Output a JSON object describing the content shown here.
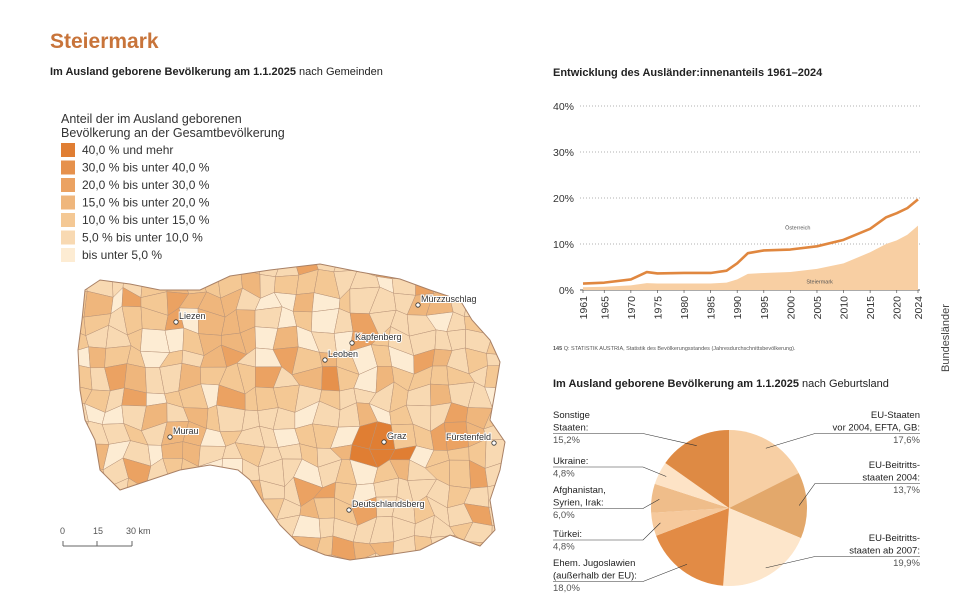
{
  "header": {
    "title": "Steiermark",
    "subtitle_bold": "Im Ausland geborene Bevölkerung am 1.1.2025",
    "subtitle_rest": "nach Gemeinden"
  },
  "map": {
    "legend_title": [
      "Anteil der im Ausland geborenen",
      "Bevölkerung an der Gesamtbevölkerung"
    ],
    "legend": [
      {
        "label": "40,0 % und mehr",
        "color": "#e07e33"
      },
      {
        "label": "30,0 % bis unter 40,0 %",
        "color": "#e6914c"
      },
      {
        "label": "20,0 % bis unter 30,0 %",
        "color": "#eba262"
      },
      {
        "label": "15,0 % bis unter 20,0 %",
        "color": "#efb67c"
      },
      {
        "label": "10,0 % bis unter 15,0 %",
        "color": "#f4c894"
      },
      {
        "label": "5,0 % bis unter 10,0 %",
        "color": "#f8d9b2"
      },
      {
        "label": "bis unter 5,0 %",
        "color": "#fdecd3"
      }
    ],
    "cities": [
      "Liezen",
      "Mürzzuschlag",
      "Kapfenberg",
      "Leoben",
      "Murau",
      "Graz",
      "Fürstenfeld",
      "Deutschlandsberg"
    ],
    "scale": [
      "0",
      "15",
      "30 km"
    ]
  },
  "side_label": "Bundesländer",
  "page_number": "145",
  "source": "Q: STATISTIK AUSTRIA, Statistik des Bevölkerungsstandes (Jahresdurchschnittsbevölkerung).",
  "chart_data": [
    {
      "type": "line",
      "title": "Entwicklung des Ausländer:innenanteils 1961–2024",
      "x": [
        1961,
        1965,
        1970,
        1973,
        1975,
        1980,
        1985,
        1988,
        1990,
        1992,
        1995,
        2000,
        2005,
        2010,
        2015,
        2018,
        2020,
        2022,
        2024
      ],
      "xlim": [
        1961,
        2024
      ],
      "xticks": [
        1961,
        1965,
        1970,
        1975,
        1980,
        1985,
        1990,
        1995,
        2000,
        2005,
        2010,
        2015,
        2020,
        2024
      ],
      "ylim": [
        0,
        40
      ],
      "yticks": [
        {
          "value": 0,
          "label": "0%"
        },
        {
          "value": 10,
          "label": "10%"
        },
        {
          "value": 20,
          "label": "20%"
        },
        {
          "value": 30,
          "label": "30%"
        },
        {
          "value": 40,
          "label": "40%"
        }
      ],
      "grid": true,
      "series": [
        {
          "name": "Steiermark",
          "style": "area",
          "color": "#f8cfa3",
          "values": [
            0.6,
            0.7,
            1.0,
            1.5,
            1.4,
            1.4,
            1.4,
            1.6,
            2.3,
            3.5,
            3.7,
            3.9,
            4.6,
            5.8,
            8.2,
            10.0,
            10.8,
            12.0,
            14.0
          ]
        },
        {
          "name": "Österreich",
          "style": "line",
          "color": "#e0873f",
          "values": [
            1.4,
            1.6,
            2.3,
            3.9,
            3.6,
            3.7,
            3.7,
            4.2,
            5.8,
            8.0,
            8.6,
            8.8,
            9.5,
            10.9,
            13.3,
            15.8,
            16.7,
            17.8,
            19.7
          ]
        }
      ]
    },
    {
      "type": "pie",
      "title": "Im Ausland geborene Bevölkerung am 1.1.2025",
      "title_rest": "nach Geburtsland",
      "categories": [
        [
          "EU-Staaten",
          "vor 2004, EFTA, GB:"
        ],
        [
          "EU-Beitritts-",
          "staaten 2004:"
        ],
        [
          "EU-Beitritts-",
          "staaten ab 2007:"
        ],
        [
          "Ehem. Jugoslawien",
          "(außerhalb der EU):"
        ],
        [
          "Türkei:"
        ],
        [
          "Afghanistan,",
          "Syrien, Irak:"
        ],
        [
          "Ukraine:"
        ],
        [
          "Sonstige",
          "Staaten:"
        ]
      ],
      "values": [
        17.6,
        13.7,
        19.9,
        18.0,
        4.8,
        6.0,
        4.8,
        15.2
      ],
      "value_labels": [
        "17,6%",
        "13,7%",
        "19,9%",
        "18,0%",
        "4,8%",
        "6,0%",
        "4,8%",
        "15,2%"
      ],
      "colors": [
        "#f7cfa4",
        "#e3a86b",
        "#fde6cb",
        "#e28b45",
        "#f6c99c",
        "#efbd8a",
        "#fde3c6",
        "#de8a44"
      ]
    }
  ]
}
